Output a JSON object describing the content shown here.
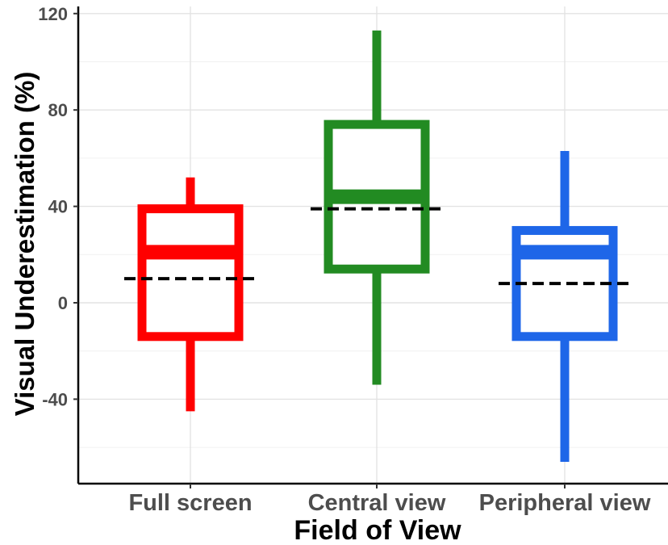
{
  "chart_data": {
    "type": "boxplot",
    "title": "",
    "xlabel": "Field of View",
    "ylabel": "Visual Underestimation (%)",
    "ylim": [
      -75,
      121
    ],
    "yticks": [
      -40,
      0,
      40,
      80,
      120
    ],
    "ytick_labels": [
      "-40",
      "0",
      "40",
      "80",
      "120"
    ],
    "grid": true,
    "legend": "none",
    "mean_line_style": "black dashed",
    "categories": [
      "Full screen",
      "Central view",
      "Peripheral view"
    ],
    "boxes": [
      {
        "category": "Full screen",
        "color": "#ff0000",
        "whisker_low": -45,
        "q1": -14,
        "median": 21,
        "q3": 39,
        "whisker_high": 52,
        "mean": 10
      },
      {
        "category": "Central view",
        "color": "#228b22",
        "whisker_low": -34,
        "q1": 14,
        "median": 44,
        "q3": 74,
        "whisker_high": 113,
        "mean": 39
      },
      {
        "category": "Peripheral view",
        "color": "#1e66e8",
        "whisker_low": -66,
        "q1": -14,
        "median": 21,
        "q3": 30,
        "whisker_high": 63,
        "mean": 8
      }
    ]
  }
}
